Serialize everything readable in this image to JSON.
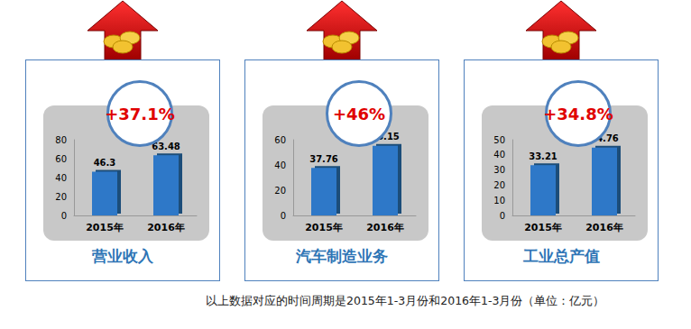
{
  "chart_data": [
    {
      "type": "bar",
      "title": "营业收入",
      "annotation": "+37.1%",
      "categories": [
        "2015年",
        "2016年"
      ],
      "values": [
        46.3,
        63.48
      ],
      "color": "#2e78c8",
      "ylim": [
        0,
        80
      ],
      "yticks": [
        0,
        20,
        40,
        60,
        80
      ],
      "grid": false,
      "data_labels": true
    },
    {
      "type": "bar",
      "title": "汽车制造业务",
      "annotation": "+46%",
      "categories": [
        "2015年",
        "2016年"
      ],
      "values": [
        37.76,
        55.15
      ],
      "color": "#2e78c8",
      "ylim": [
        0,
        60
      ],
      "yticks": [
        0,
        20,
        40,
        60
      ],
      "grid": false,
      "data_labels": true
    },
    {
      "type": "bar",
      "title": "工业总产值",
      "annotation": "+34.8%",
      "categories": [
        "2015年",
        "2016年"
      ],
      "values": [
        33.21,
        44.76
      ],
      "color": "#2e78c8",
      "ylim": [
        0,
        50
      ],
      "yticks": [
        0,
        10,
        20,
        30,
        40,
        50
      ],
      "grid": false,
      "data_labels": true
    }
  ],
  "footnote": "以上数据对应的时间周期是2015年1-3月份和2016年1-3月份（单位：亿元）"
}
